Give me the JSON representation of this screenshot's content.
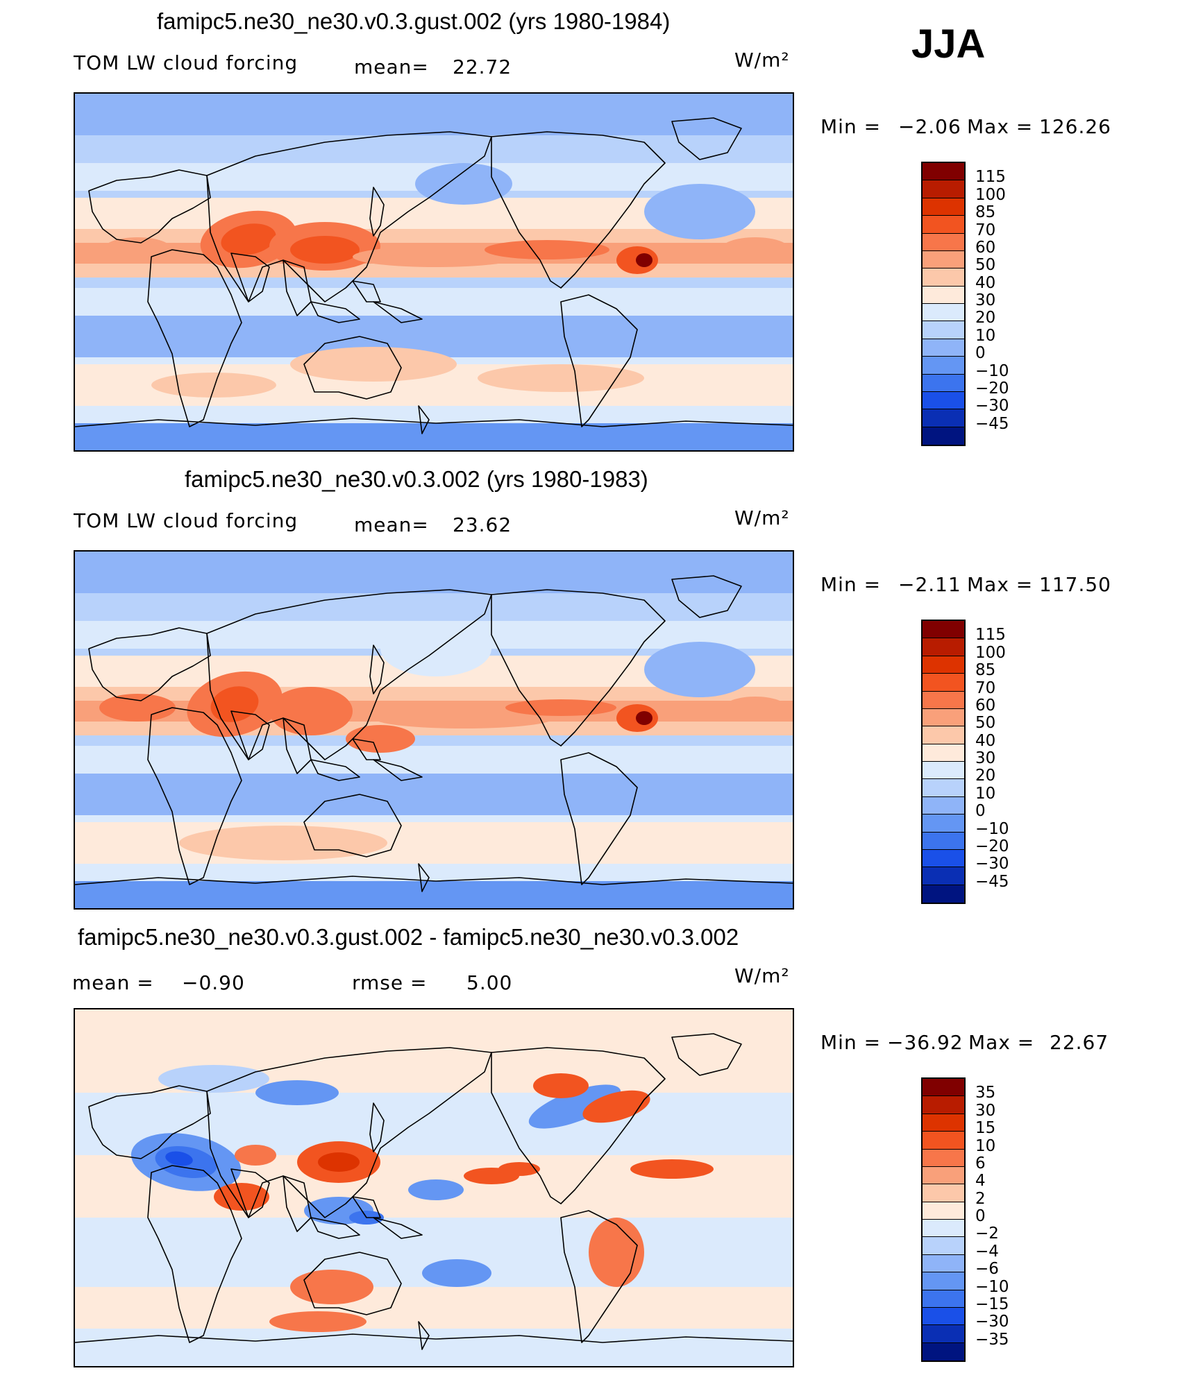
{
  "season": "JJA",
  "units": "W/m²",
  "panels": [
    {
      "title": "famipc5.ne30_ne30.v0.3.gust.002 (yrs 1980-1984)",
      "left_label": "TOM LW cloud forcing",
      "mean_label": "mean=",
      "mean_value": "22.72",
      "minmax": {
        "min_label": "Min  =",
        "min": "−2.06",
        "max_label": "Max  =",
        "max": "126.26"
      },
      "colorbar": {
        "labels": [
          "115",
          "100",
          "85",
          "70",
          "60",
          "50",
          "40",
          "30",
          "20",
          "10",
          "0",
          "−10",
          "−20",
          "−30",
          "−45"
        ],
        "colors": [
          "#800000",
          "#b81c00",
          "#dd3300",
          "#f25420",
          "#f7764a",
          "#f9a07a",
          "#fcc8aa",
          "#feeadb",
          "#dbeafc",
          "#b8d2fb",
          "#8fb4f8",
          "#6496f3",
          "#3c74ee",
          "#1a50e8",
          "#0a2fb4",
          "#001480"
        ]
      }
    },
    {
      "title": "famipc5.ne30_ne30.v0.3.002 (yrs 1980-1983)",
      "left_label": "TOM LW cloud forcing",
      "mean_label": "mean=",
      "mean_value": "23.62",
      "minmax": {
        "min_label": "Min  =",
        "min": "−2.11",
        "max_label": "Max  =",
        "max": "117.50"
      },
      "colorbar": {
        "labels": [
          "115",
          "100",
          "85",
          "70",
          "60",
          "50",
          "40",
          "30",
          "20",
          "10",
          "0",
          "−10",
          "−20",
          "−30",
          "−45"
        ],
        "colors": [
          "#800000",
          "#b81c00",
          "#dd3300",
          "#f25420",
          "#f7764a",
          "#f9a07a",
          "#fcc8aa",
          "#feeadb",
          "#dbeafc",
          "#b8d2fb",
          "#8fb4f8",
          "#6496f3",
          "#3c74ee",
          "#1a50e8",
          "#0a2fb4",
          "#001480"
        ]
      }
    },
    {
      "title": "famipc5.ne30_ne30.v0.3.gust.002 - famipc5.ne30_ne30.v0.3.002",
      "mean_label": "mean  =",
      "mean_value": "−0.90",
      "rmse_label": "rmse  =",
      "rmse_value": "5.00",
      "minmax": {
        "min_label": "Min  =",
        "min": "−36.92",
        "max_label": "Max  =",
        "max": "22.67"
      },
      "colorbar": {
        "labels": [
          "35",
          "30",
          "15",
          "10",
          "6",
          "4",
          "2",
          "0",
          "−2",
          "−4",
          "−6",
          "−10",
          "−15",
          "−30",
          "−35"
        ],
        "colors": [
          "#800000",
          "#b81c00",
          "#dd3300",
          "#f25420",
          "#f7764a",
          "#f9a07a",
          "#fcc8aa",
          "#feeadb",
          "#dbeafc",
          "#b8d2fb",
          "#8fb4f8",
          "#6496f3",
          "#3c74ee",
          "#1a50e8",
          "#0a2fb4",
          "#001480"
        ]
      }
    }
  ]
}
